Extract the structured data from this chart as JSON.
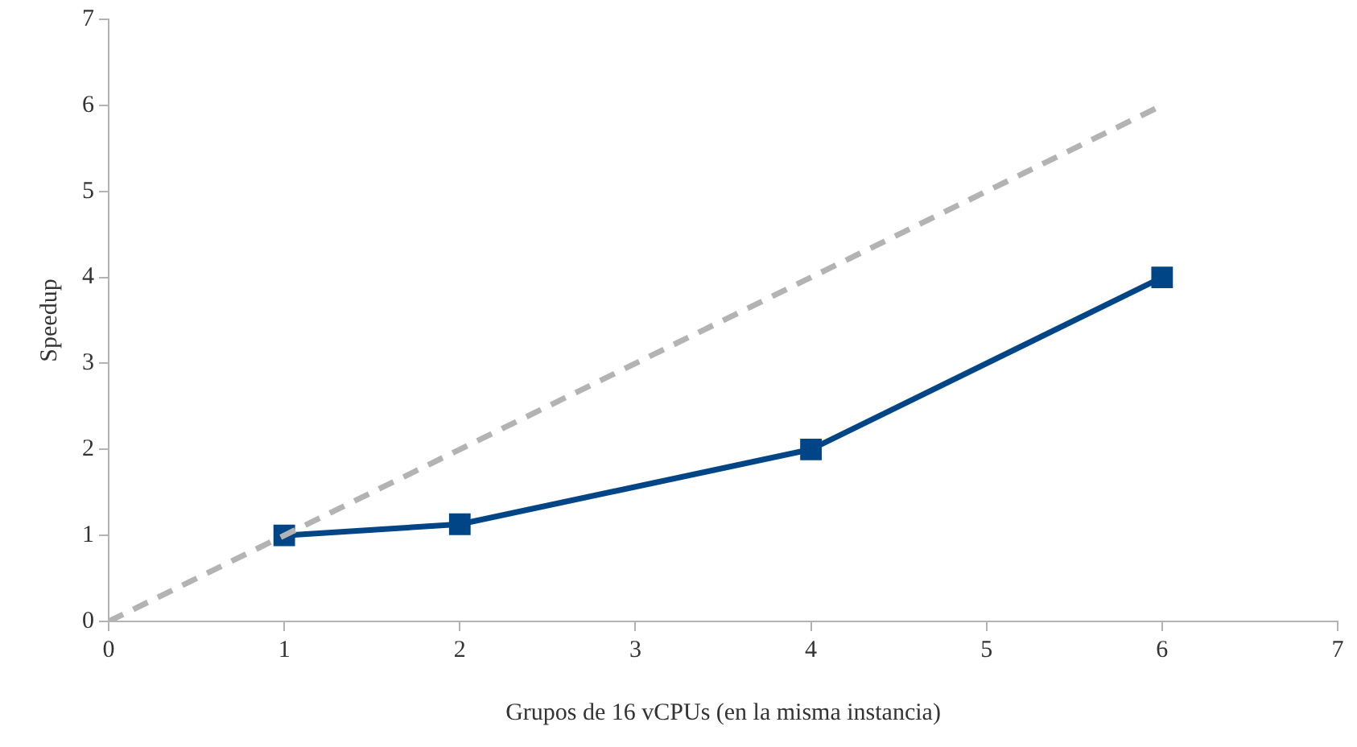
{
  "chart_data": {
    "type": "line",
    "xlabel": "Grupos de 16 vCPUs (en la misma instancia)",
    "ylabel": "Speedup",
    "xlim": [
      0,
      7
    ],
    "xticks": [
      0,
      1,
      2,
      3,
      4,
      5,
      6,
      7
    ],
    "ylim": [
      0,
      7
    ],
    "yticks": [
      0,
      1,
      2,
      3,
      4,
      5,
      6,
      7
    ],
    "series": [
      {
        "x": [
          0,
          6
        ],
        "values": [
          0,
          6
        ],
        "color": "#b3b3b3",
        "line_style": "dashed",
        "marker": "none"
      },
      {
        "x": [
          1,
          2,
          4,
          6
        ],
        "values": [
          1,
          1.13,
          2,
          4
        ],
        "color": "#004586",
        "line_style": "solid",
        "marker": "square"
      }
    ]
  }
}
